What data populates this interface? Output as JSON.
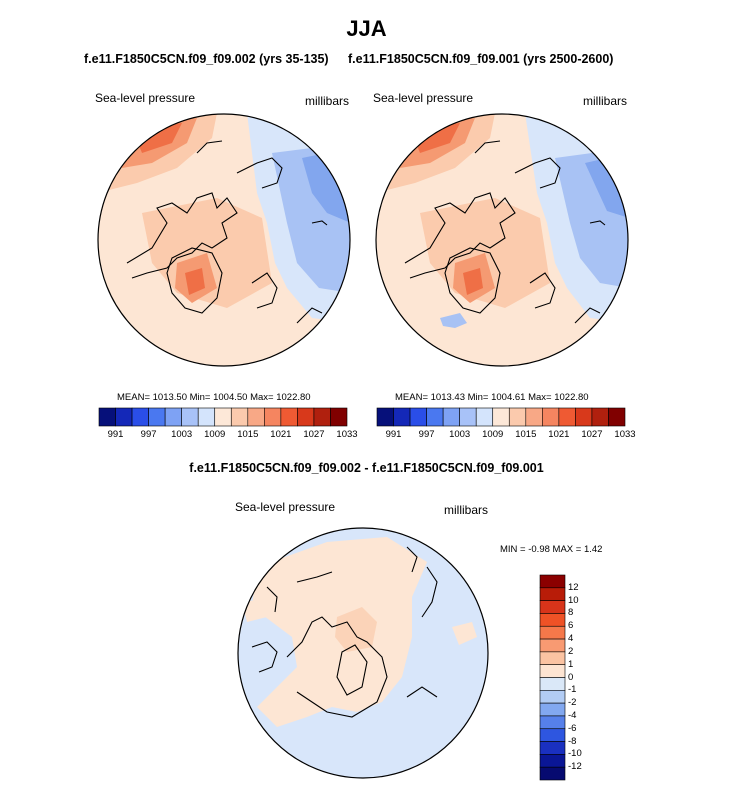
{
  "chart_data": [
    {
      "type": "contour-map",
      "title": "f.e11.F1850C5CN.f09_f09.002 (yrs 35-135)",
      "left_label": "Sea-level pressure",
      "right_label": "millibars",
      "stats": "MEAN= 1013.50  Min= 1004.50  Max= 1022.80",
      "colorbar_ticks": [
        "991",
        "997",
        "1003",
        "1009",
        "1015",
        "1021",
        "1027",
        "1033"
      ],
      "colorbar_colors": [
        "#06107a",
        "#1428b8",
        "#2a4ee8",
        "#4a78f0",
        "#7ea2f4",
        "#a8c2f8",
        "#d4e4fc",
        "#fde8d8",
        "#fbcaad",
        "#f8a886",
        "#f58560",
        "#ef5a33",
        "#d8391b",
        "#b0200e",
        "#800000"
      ]
    },
    {
      "type": "contour-map",
      "title": "f.e11.F1850C5CN.f09_f09.001 (yrs 2500-2600)",
      "left_label": "Sea-level pressure",
      "right_label": "millibars",
      "stats": "MEAN= 1013.43  Min= 1004.61  Max= 1022.80",
      "colorbar_ticks": [
        "991",
        "997",
        "1003",
        "1009",
        "1015",
        "1021",
        "1027",
        "1033"
      ],
      "colorbar_colors": [
        "#06107a",
        "#1428b8",
        "#2a4ee8",
        "#4a78f0",
        "#7ea2f4",
        "#a8c2f8",
        "#d4e4fc",
        "#fde8d8",
        "#fbcaad",
        "#f8a886",
        "#f58560",
        "#ef5a33",
        "#d8391b",
        "#b0200e",
        "#800000"
      ]
    },
    {
      "type": "contour-map",
      "title": "f.e11.F1850C5CN.f09_f09.002 - f.e11.F1850C5CN.f09_f09.001",
      "left_label": "Sea-level pressure",
      "right_label": "millibars",
      "stats": "MIN =  -0.98 MAX =   1.42",
      "colorbar_ticks": [
        "12",
        "10",
        "8",
        "6",
        "4",
        "2",
        "1",
        "0",
        "-1",
        "-2",
        "-4",
        "-6",
        "-8",
        "-10",
        "-12"
      ],
      "colorbar_colors": [
        "#8b0000",
        "#b81c08",
        "#d8341a",
        "#ef5226",
        "#f5784a",
        "#f89a72",
        "#fbc3a2",
        "#fde4d2",
        "#dae8f8",
        "#b2ccf4",
        "#82a8f0",
        "#5680ea",
        "#2e56e0",
        "#1a30c0",
        "#0a1696",
        "#060a70"
      ]
    }
  ],
  "figure": {
    "main_title": "JJA"
  },
  "colors": {
    "ocean_blue": "#d8e6fa",
    "mid_blue": "#a8c2f4",
    "deep_blue": "#82a6ee",
    "light_orange": "#fde6d4",
    "mid_orange": "#fbcbad",
    "strong_orange": "#f59a72",
    "red_orange": "#ef6f46",
    "diff_orange": "#fbd3b8"
  }
}
